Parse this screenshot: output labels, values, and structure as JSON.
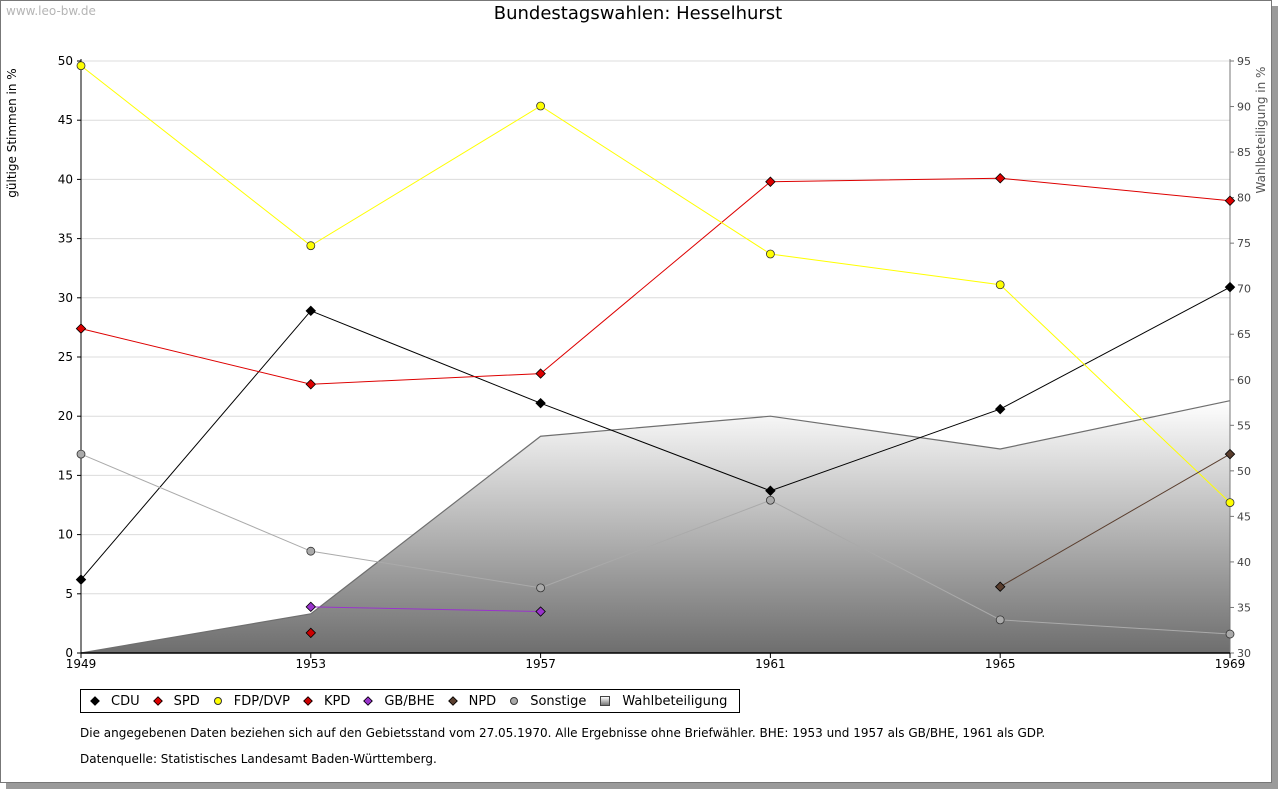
{
  "watermark": "www.leo-bw.de",
  "chart_data": {
    "type": "line",
    "title": "Bundestagswahlen: Hesselhurst",
    "ylabel": "gültige Stimmen in %",
    "y2label": "Wahlbeteiligung in %",
    "x": [
      "1949",
      "1953",
      "1957",
      "1961",
      "1965",
      "1969"
    ],
    "ylim": [
      0,
      50
    ],
    "yticks": [
      0,
      5,
      10,
      15,
      20,
      25,
      30,
      35,
      40,
      45,
      50
    ],
    "y2lim": [
      30,
      95
    ],
    "y2ticks": [
      30,
      35,
      40,
      45,
      50,
      55,
      60,
      65,
      70,
      75,
      80,
      85,
      90,
      95
    ],
    "grid": true,
    "legend_position": "bottom",
    "series": [
      {
        "name": "CDU",
        "color": "#000000",
        "marker": "diamond",
        "values": [
          6.2,
          28.9,
          21.1,
          13.7,
          20.6,
          30.9
        ]
      },
      {
        "name": "SPD",
        "color": "#dd0000",
        "marker": "diamond",
        "values": [
          27.4,
          22.7,
          23.6,
          39.8,
          40.1,
          38.2
        ]
      },
      {
        "name": "FDP/DVP",
        "color": "#ffff00",
        "marker": "circle",
        "values": [
          49.6,
          34.4,
          46.2,
          33.7,
          31.1,
          12.7
        ]
      },
      {
        "name": "KPD",
        "color": "#cc0000",
        "marker": "diamond",
        "values": [
          null,
          1.7,
          null,
          null,
          null,
          null
        ]
      },
      {
        "name": "GB/BHE",
        "color": "#9933cc",
        "marker": "diamond",
        "values": [
          null,
          3.9,
          3.5,
          null,
          null,
          null
        ]
      },
      {
        "name": "NPD",
        "color": "#5a3e2e",
        "marker": "diamond",
        "values": [
          null,
          null,
          null,
          null,
          5.6,
          16.8
        ]
      },
      {
        "name": "Sonstige",
        "color": "#aaaaaa",
        "marker": "circle",
        "values": [
          16.8,
          8.6,
          5.5,
          12.9,
          2.8,
          1.6
        ]
      }
    ],
    "area_series": {
      "name": "Wahlbeteiligung",
      "axis": "right",
      "values": [
        30.0,
        34.3,
        53.8,
        56.0,
        52.4,
        57.7
      ]
    }
  },
  "footnote": "Die angegebenen Daten beziehen sich auf den Gebietsstand vom 27.05.1970. Alle Ergebnisse ohne Briefwähler. BHE: 1953 und 1957 als GB/BHE, 1961 als GDP.",
  "source": "Datenquelle: Statistisches Landesamt Baden-Württemberg."
}
